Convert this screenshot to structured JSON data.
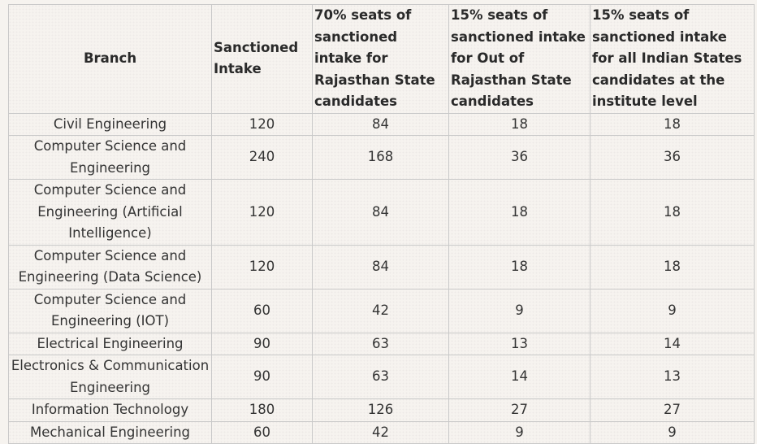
{
  "table": {
    "headers": [
      "Branch",
      "Sanctioned Intake",
      "70% seats of sanctioned intake for Rajasthan State candidates",
      "15% seats of sanctioned intake for Out of Rajasthan State candidates",
      "15% seats of sanctioned intake for all Indian States candidates at the institute level"
    ],
    "rows": [
      {
        "branch": "Civil Engineering",
        "intake": "120",
        "raj": "84",
        "out": "18",
        "all": "18"
      },
      {
        "branch": "Computer Science and Engineering",
        "intake": "240",
        "raj": "168",
        "out": "36",
        "all": "36"
      },
      {
        "branch": "Computer Science and Engineering (Artificial Intelligence)",
        "intake": "120",
        "raj": "84",
        "out": "18",
        "all": "18"
      },
      {
        "branch": "Computer Science and Engineering (Data  Science)",
        "intake": "120",
        "raj": "84",
        "out": "18",
        "all": "18"
      },
      {
        "branch": "Computer Science and Engineering (IOT)",
        "intake": "60",
        "raj": "42",
        "out": "9",
        "all": "9"
      },
      {
        "branch": "Electrical Engineering",
        "intake": "90",
        "raj": "63",
        "out": "13",
        "all": "14"
      },
      {
        "branch": "Electronics &  Communication Engineering",
        "intake": "90",
        "raj": "63",
        "out": "14",
        "all": "13"
      },
      {
        "branch": "Information Technology",
        "intake": "180",
        "raj": "126",
        "out": "27",
        "all": "27"
      },
      {
        "branch": "Mechanical Engineering",
        "intake": "60",
        "raj": "42",
        "out": "9",
        "all": "9"
      }
    ]
  }
}
